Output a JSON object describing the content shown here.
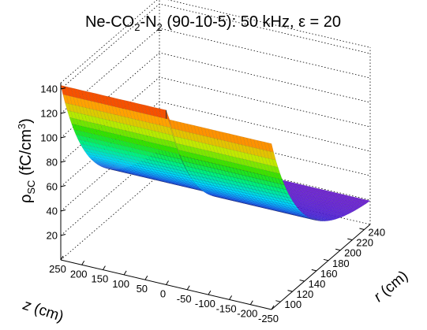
{
  "chart_data": {
    "type": "surface",
    "title": {
      "main": "Ne-CO",
      "sub1": "2",
      "mid1": "-N",
      "sub2": "2",
      "rest": " (90-10-5): 50 kHz, ε = 20"
    },
    "zlabel": {
      "rho": "ρ",
      "sub": "SC",
      "unit": " (fC/cm",
      "sup": "3",
      "close": ")"
    },
    "xlabel": {
      "var": "z",
      "unit": " (cm)"
    },
    "ylabel": {
      "var": "r",
      "unit": " (cm)"
    },
    "z_axis": {
      "range": [
        -250,
        250
      ],
      "ticks": [
        250,
        200,
        150,
        100,
        50,
        0,
        -50,
        -100,
        -150,
        -200,
        -250
      ]
    },
    "r_axis": {
      "range": [
        85,
        250
      ],
      "ticks": [
        100,
        120,
        140,
        160,
        180,
        200,
        220,
        240
      ]
    },
    "rho_axis": {
      "range": [
        0,
        145
      ],
      "ticks": [
        20,
        40,
        60,
        80,
        100,
        120,
        140
      ]
    },
    "model": {
      "a": 16,
      "b": 127,
      "tau": 49,
      "step_ratio": 0.95
    },
    "colormap": "rainbow",
    "grid": true
  }
}
